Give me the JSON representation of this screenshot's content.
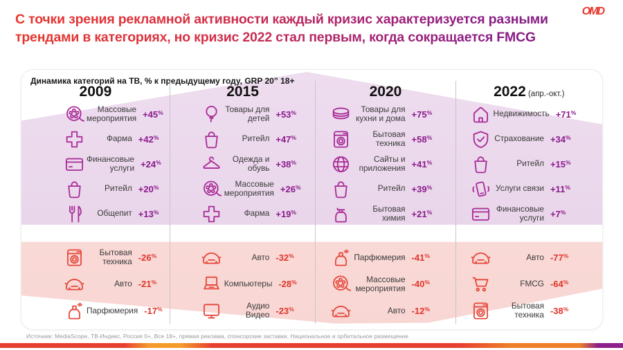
{
  "title": {
    "line1": "С точки зрения рекламной активности каждый кризис характеризуется разными",
    "line2": "трендами в категориях, но кризис 2022 стал первым, когда сокращается FMCG"
  },
  "logo": "OMD",
  "card": {
    "subtitle": "Динамика категорий на ТВ, % к предыдущему году, GRP 20” 18+",
    "columns": [
      {
        "year": "2009",
        "note": "",
        "positive": [
          {
            "icon": "film-reel",
            "label": "Массовые мероприятия",
            "value": "+45%"
          },
          {
            "icon": "pharma-cross",
            "label": "Фарма",
            "value": "+42%"
          },
          {
            "icon": "credit-card",
            "label": "Финансовые услуги",
            "value": "+24%"
          },
          {
            "icon": "shopping-bag",
            "label": "Ритейл",
            "value": "+20%"
          },
          {
            "icon": "cutlery",
            "label": "Общепит",
            "value": "+13%"
          }
        ],
        "negative": [
          {
            "icon": "washing-machine",
            "label": "Бытовая техника",
            "value": "-26%"
          },
          {
            "icon": "car",
            "label": "Авто",
            "value": "-21%"
          },
          {
            "icon": "perfume-spray",
            "label": "Парфюмерия",
            "value": "-17%"
          }
        ]
      },
      {
        "year": "2015",
        "note": "",
        "positive": [
          {
            "icon": "balloon",
            "label": "Товары для детей",
            "value": "+53%"
          },
          {
            "icon": "shopping-bag",
            "label": "Ритейл",
            "value": "+47%"
          },
          {
            "icon": "hanger",
            "label": "Одежда и обувь",
            "value": "+38%"
          },
          {
            "icon": "film-reel",
            "label": "Массовые мероприятия",
            "value": "+26%"
          },
          {
            "icon": "pharma-cross",
            "label": "Фарма",
            "value": "+19%"
          }
        ],
        "negative": [
          {
            "icon": "car",
            "label": "Авто",
            "value": "-32%"
          },
          {
            "icon": "laptop",
            "label": "Компьютеры",
            "value": "-28%"
          },
          {
            "icon": "tv-monitor",
            "label": "Аудио Видео",
            "value": "-23%"
          }
        ]
      },
      {
        "year": "2020",
        "note": "",
        "positive": [
          {
            "icon": "plates",
            "label": "Товары для кухни и дома",
            "value": "+75%"
          },
          {
            "icon": "washing-machine",
            "label": "Бытовая техника",
            "value": "+58%"
          },
          {
            "icon": "globe",
            "label": "Сайты и приложения",
            "value": "+41%"
          },
          {
            "icon": "shopping-bag",
            "label": "Ритейл",
            "value": "+39%"
          },
          {
            "icon": "detergent-bottle",
            "label": "Бытовая химия",
            "value": "+21%"
          }
        ],
        "negative": [
          {
            "icon": "perfume-spray",
            "label": "Парфюмерия",
            "value": "-41%"
          },
          {
            "icon": "film-reel",
            "label": "Массовые мероприятия",
            "value": "-40%"
          },
          {
            "icon": "car",
            "label": "Авто",
            "value": "-12%"
          }
        ]
      },
      {
        "year": "2022",
        "note": "(апр.-окт.)",
        "positive": [
          {
            "icon": "house",
            "label": "Недвижимость",
            "value": "+71%"
          },
          {
            "icon": "shield-check",
            "label": "Страхование",
            "value": "+34%"
          },
          {
            "icon": "shopping-bag",
            "label": "Ритейл",
            "value": "+15%"
          },
          {
            "icon": "phone-vibrate",
            "label": "Услуги связи",
            "value": "+11%"
          },
          {
            "icon": "credit-card",
            "label": "Финансовые услуги",
            "value": "+7%"
          }
        ],
        "negative": [
          {
            "icon": "car",
            "label": "Авто",
            "value": "-77%"
          },
          {
            "icon": "shopping-cart",
            "label": "FMCG",
            "value": "-64%"
          },
          {
            "icon": "washing-machine",
            "label": "Бытовая техника",
            "value": "-38%"
          }
        ]
      }
    ]
  },
  "footer": {
    "source": "Источник: MediaScope, ТВ-Индекс, Россия 0+, Все 18+, прямая реклама, спонсорские заставки, Национальное и орбитальное размещение"
  },
  "colors": {
    "positive_value": "#8a1a8c",
    "positive_icon": "#a82a96",
    "negative_value": "#e0352b",
    "negative_icon": "#e6473b",
    "positive_bg": "#e9d6e9",
    "negative_bg": "#fadcda",
    "title_red": "#e6352b",
    "title_purple": "#8c1d86",
    "logo_red": "#e8392e",
    "footer_bar_gradient": [
      "#e8402f",
      "#f59b2c",
      "#e8402f",
      "#ef7f28",
      "#8c1f8c"
    ]
  },
  "chart_data": {
    "type": "table",
    "title": "Динамика категорий на ТВ, % к предыдущему году, GRP 20” 18+",
    "groups": [
      {
        "year": "2009",
        "gainers": [
          {
            "category": "Массовые мероприятия",
            "change_pct": 45
          },
          {
            "category": "Фарма",
            "change_pct": 42
          },
          {
            "category": "Финансовые услуги",
            "change_pct": 24
          },
          {
            "category": "Ритейл",
            "change_pct": 20
          },
          {
            "category": "Общепит",
            "change_pct": 13
          }
        ],
        "decliners": [
          {
            "category": "Бытовая техника",
            "change_pct": -26
          },
          {
            "category": "Авто",
            "change_pct": -21
          },
          {
            "category": "Парфюмерия",
            "change_pct": -17
          }
        ]
      },
      {
        "year": "2015",
        "gainers": [
          {
            "category": "Товары для детей",
            "change_pct": 53
          },
          {
            "category": "Ритейл",
            "change_pct": 47
          },
          {
            "category": "Одежда и обувь",
            "change_pct": 38
          },
          {
            "category": "Массовые мероприятия",
            "change_pct": 26
          },
          {
            "category": "Фарма",
            "change_pct": 19
          }
        ],
        "decliners": [
          {
            "category": "Авто",
            "change_pct": -32
          },
          {
            "category": "Компьютеры",
            "change_pct": -28
          },
          {
            "category": "Аудио Видео",
            "change_pct": -23
          }
        ]
      },
      {
        "year": "2020",
        "gainers": [
          {
            "category": "Товары для кухни и дома",
            "change_pct": 75
          },
          {
            "category": "Бытовая техника",
            "change_pct": 58
          },
          {
            "category": "Сайты и приложения",
            "change_pct": 41
          },
          {
            "category": "Ритейл",
            "change_pct": 39
          },
          {
            "category": "Бытовая химия",
            "change_pct": 21
          }
        ],
        "decliners": [
          {
            "category": "Парфюмерия",
            "change_pct": -41
          },
          {
            "category": "Массовые мероприятия",
            "change_pct": -40
          },
          {
            "category": "Авто",
            "change_pct": -12
          }
        ]
      },
      {
        "year": "2022 (апр.-окт.)",
        "gainers": [
          {
            "category": "Недвижимость",
            "change_pct": 71
          },
          {
            "category": "Страхование",
            "change_pct": 34
          },
          {
            "category": "Ритейл",
            "change_pct": 15
          },
          {
            "category": "Услуги связи",
            "change_pct": 11
          },
          {
            "category": "Финансовые услуги",
            "change_pct": 7
          }
        ],
        "decliners": [
          {
            "category": "Авто",
            "change_pct": -77
          },
          {
            "category": "FMCG",
            "change_pct": -64
          },
          {
            "category": "Бытовая техника",
            "change_pct": -38
          }
        ]
      }
    ]
  }
}
